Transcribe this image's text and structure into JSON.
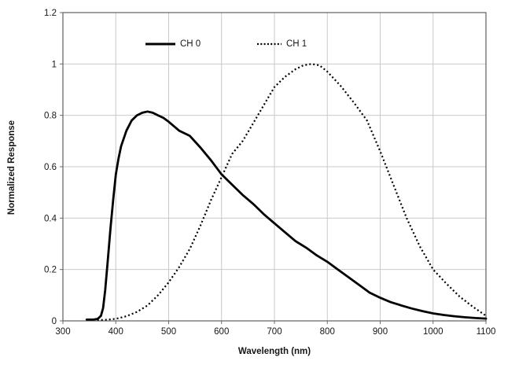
{
  "chart_data": {
    "type": "line",
    "title": "",
    "xlabel": "Wavelength (nm)",
    "ylabel": "Normalized Response",
    "xlim": [
      300,
      1100
    ],
    "ylim": [
      0,
      1.2
    ],
    "x_ticks": [
      300,
      400,
      500,
      600,
      700,
      800,
      900,
      1000,
      1100
    ],
    "y_ticks": [
      0,
      0.2,
      0.4,
      0.6,
      0.8,
      1,
      1.2
    ],
    "y_tick_labels": [
      "0",
      "0.2",
      "0.4",
      "0.6",
      "0.8",
      "1",
      "1.2"
    ],
    "grid": true,
    "legend_position": "top-inside",
    "series": [
      {
        "name": "CH 0",
        "style": "solid",
        "color": "#000000",
        "points": [
          [
            345,
            0.005
          ],
          [
            358,
            0.005
          ],
          [
            366,
            0.008
          ],
          [
            372,
            0.02
          ],
          [
            376,
            0.05
          ],
          [
            380,
            0.12
          ],
          [
            385,
            0.24
          ],
          [
            390,
            0.36
          ],
          [
            395,
            0.47
          ],
          [
            400,
            0.57
          ],
          [
            405,
            0.63
          ],
          [
            410,
            0.68
          ],
          [
            420,
            0.74
          ],
          [
            430,
            0.78
          ],
          [
            440,
            0.8
          ],
          [
            450,
            0.81
          ],
          [
            460,
            0.815
          ],
          [
            470,
            0.81
          ],
          [
            480,
            0.8
          ],
          [
            490,
            0.79
          ],
          [
            500,
            0.775
          ],
          [
            520,
            0.74
          ],
          [
            540,
            0.72
          ],
          [
            560,
            0.675
          ],
          [
            580,
            0.625
          ],
          [
            600,
            0.57
          ],
          [
            620,
            0.53
          ],
          [
            640,
            0.49
          ],
          [
            660,
            0.455
          ],
          [
            680,
            0.415
          ],
          [
            700,
            0.38
          ],
          [
            720,
            0.345
          ],
          [
            740,
            0.31
          ],
          [
            760,
            0.285
          ],
          [
            780,
            0.255
          ],
          [
            800,
            0.23
          ],
          [
            820,
            0.2
          ],
          [
            840,
            0.17
          ],
          [
            860,
            0.14
          ],
          [
            880,
            0.11
          ],
          [
            900,
            0.09
          ],
          [
            920,
            0.073
          ],
          [
            940,
            0.06
          ],
          [
            960,
            0.048
          ],
          [
            980,
            0.038
          ],
          [
            1000,
            0.029
          ],
          [
            1020,
            0.023
          ],
          [
            1040,
            0.018
          ],
          [
            1060,
            0.014
          ],
          [
            1080,
            0.011
          ],
          [
            1100,
            0.009
          ]
        ]
      },
      {
        "name": "CH 1",
        "style": "dotted",
        "color": "#000000",
        "points": [
          [
            365,
            0.003
          ],
          [
            380,
            0.004
          ],
          [
            400,
            0.008
          ],
          [
            420,
            0.018
          ],
          [
            440,
            0.035
          ],
          [
            460,
            0.06
          ],
          [
            480,
            0.1
          ],
          [
            500,
            0.15
          ],
          [
            520,
            0.21
          ],
          [
            540,
            0.28
          ],
          [
            560,
            0.37
          ],
          [
            580,
            0.47
          ],
          [
            600,
            0.56
          ],
          [
            620,
            0.65
          ],
          [
            640,
            0.7
          ],
          [
            650,
            0.735
          ],
          [
            660,
            0.77
          ],
          [
            680,
            0.84
          ],
          [
            700,
            0.91
          ],
          [
            720,
            0.95
          ],
          [
            740,
            0.98
          ],
          [
            755,
            0.995
          ],
          [
            770,
            1.0
          ],
          [
            785,
            0.995
          ],
          [
            800,
            0.97
          ],
          [
            825,
            0.915
          ],
          [
            850,
            0.85
          ],
          [
            875,
            0.78
          ],
          [
            900,
            0.66
          ],
          [
            925,
            0.53
          ],
          [
            950,
            0.4
          ],
          [
            975,
            0.29
          ],
          [
            1000,
            0.2
          ],
          [
            1025,
            0.145
          ],
          [
            1050,
            0.095
          ],
          [
            1075,
            0.055
          ],
          [
            1100,
            0.02
          ]
        ]
      }
    ]
  },
  "axes": {
    "x_label": "Wavelength (nm)",
    "y_label": "Normalized Response"
  },
  "legend": {
    "items": [
      {
        "label": "CH 0"
      },
      {
        "label": "CH 1"
      }
    ]
  },
  "colors": {
    "background": "#ffffff",
    "line": "#000000",
    "grid": "#c9c9c9",
    "border": "#6b6b6b",
    "text": "#161616"
  }
}
